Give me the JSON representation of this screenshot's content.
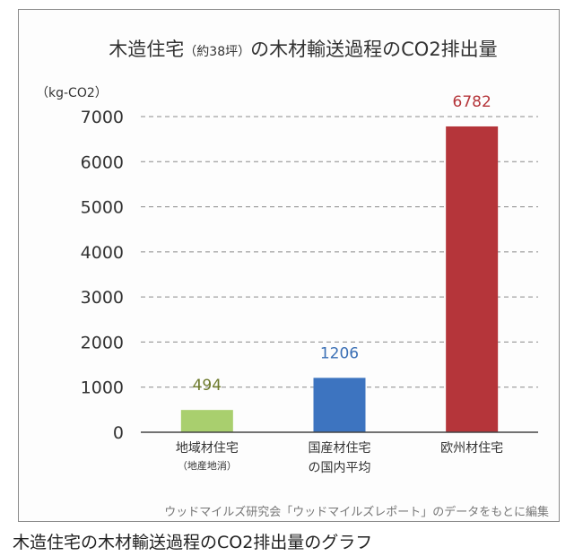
{
  "chart_data": {
    "type": "bar",
    "title_main": "木造住宅",
    "title_paren": "（約38坪）",
    "title_rest": "の木材輸送過程のCO2排出量",
    "ylabel": "（kg-CO2）",
    "ylim": [
      0,
      7000
    ],
    "yticks": [
      "0",
      "1000",
      "2000",
      "3000",
      "4000",
      "5000",
      "6000",
      "7000"
    ],
    "grid": true,
    "categories": [
      {
        "line1": "地域材住宅",
        "line2": "（地産地消）"
      },
      {
        "line1": "国産材住宅",
        "line2": "の国内平均"
      },
      {
        "line1": "欧州材住宅",
        "line2": ""
      }
    ],
    "values": [
      494,
      1206,
      6782
    ],
    "value_labels": [
      "494",
      "1206",
      "6782"
    ],
    "colors": [
      "#a9cf6e",
      "#3d74c0",
      "#b5353a"
    ],
    "label_colors": [
      "#6d7a2c",
      "#3a6fb5",
      "#b5353a"
    ]
  },
  "source_note": "ウッドマイルズ研究会「ウッドマイルズレポート」のデータをもとに編集",
  "caption": "木造住宅の木材輸送過程のCO2排出量のグラフ"
}
